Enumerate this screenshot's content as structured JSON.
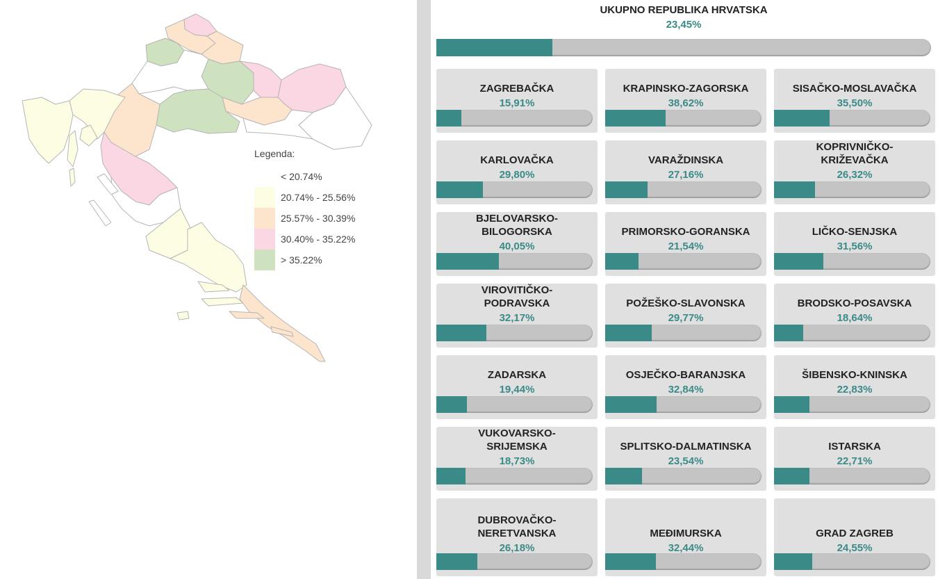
{
  "legend": {
    "title": "Legenda:",
    "items": [
      {
        "label": "< 20.74%",
        "color": "#ffffff"
      },
      {
        "label": "20.74% - 25.56%",
        "color": "#fdfde3"
      },
      {
        "label": "25.57% - 30.39%",
        "color": "#fde4cd"
      },
      {
        "label": "30.40% - 35.22%",
        "color": "#fbd6e3"
      },
      {
        "label": "> 35.22%",
        "color": "#cfe2bf"
      }
    ]
  },
  "colors": {
    "accent": "#3a8a87",
    "bar_track": "#c4c4c4",
    "card_bg": "#e0e0e0",
    "divider": "#d9d9d9"
  },
  "total": {
    "title": "UKUPNO REPUBLIKA HRVATSKA",
    "value": "23,45%",
    "percent": 23.45
  },
  "counties": [
    {
      "name": "ZAGREBAČKA",
      "value": "15,91%",
      "percent": 15.91
    },
    {
      "name": "KRAPINSKO-ZAGORSKA",
      "value": "38,62%",
      "percent": 38.62
    },
    {
      "name": "SISAČKO-MOSLAVAČKA",
      "value": "35,50%",
      "percent": 35.5
    },
    {
      "name": "KARLOVAČKA",
      "value": "29,80%",
      "percent": 29.8
    },
    {
      "name": "VARAŽDINSKA",
      "value": "27,16%",
      "percent": 27.16
    },
    {
      "name": "KOPRIVNIČKO-KRIŽEVAČKA",
      "value": "26,32%",
      "percent": 26.32
    },
    {
      "name": "BJELOVARSKO-BILOGORSKA",
      "value": "40,05%",
      "percent": 40.05
    },
    {
      "name": "PRIMORSKO-GORANSKA",
      "value": "21,54%",
      "percent": 21.54
    },
    {
      "name": "LIČKO-SENJSKA",
      "value": "31,56%",
      "percent": 31.56
    },
    {
      "name": "VIROVITIČKO-PODRAVSKA",
      "value": "32,17%",
      "percent": 32.17
    },
    {
      "name": "POŽEŠKO-SLAVONSKA",
      "value": "29,77%",
      "percent": 29.77
    },
    {
      "name": "BRODSKO-POSAVSKA",
      "value": "18,64%",
      "percent": 18.64
    },
    {
      "name": "ZADARSKA",
      "value": "19,44%",
      "percent": 19.44
    },
    {
      "name": "OSJEČKO-BARANJSKA",
      "value": "32,84%",
      "percent": 32.84
    },
    {
      "name": "ŠIBENSKO-KNINSKA",
      "value": "22,83%",
      "percent": 22.83
    },
    {
      "name": "VUKOVARSKO-SRIJEMSKA",
      "value": "18,73%",
      "percent": 18.73
    },
    {
      "name": "SPLITSKO-DALMATINSKA",
      "value": "23,54%",
      "percent": 23.54
    },
    {
      "name": "ISTARSKA",
      "value": "22,71%",
      "percent": 22.71
    },
    {
      "name": "DUBROVAČKO-NERETVANSKA",
      "value": "26,18%",
      "percent": 26.18
    },
    {
      "name": "MEĐIMURSKA",
      "value": "32,44%",
      "percent": 32.44
    },
    {
      "name": "GRAD ZAGREB",
      "value": "24,55%",
      "percent": 24.55
    }
  ]
}
